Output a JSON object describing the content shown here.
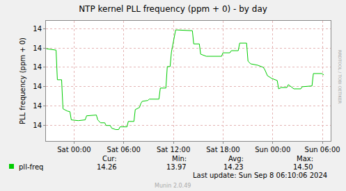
{
  "chart_data": {
    "type": "line",
    "title": "NTP kernel PLL frequency (ppm + 0) - by day",
    "y_label": "PLL frequency (ppm + 0)",
    "x": [
      -3.36,
      -2.86,
      -2.18,
      -2.02,
      -1.51,
      -1.34,
      -0.84,
      -0.5,
      -0.34,
      0.5,
      1.34,
      1.51,
      2.69,
      2.86,
      3.19,
      3.7,
      3.87,
      4.37,
      4.54,
      5.04,
      5.38,
      5.55,
      6.39,
      6.55,
      7.23,
      7.39,
      7.9,
      8.07,
      8.24,
      8.91,
      9.08,
      10.25,
      10.42,
      11.09,
      11.26,
      11.6,
      11.76,
      12.27,
      12.44,
      14.29,
      14.45,
      15.13,
      15.29,
      15.97,
      17.82,
      17.98,
      18.82,
      18.99,
      19.83,
      20.0,
      20.84,
      21.01,
      21.34,
      22.18,
      22.86,
      23.03,
      23.19,
      23.36,
      23.87,
      24.54,
      24.71,
      25.04,
      25.71,
      25.88,
      26.55,
      27.39,
      27.56,
      28.74,
      28.91,
      29.92,
      30.17
    ],
    "series": [
      {
        "name": "pll-freq",
        "color": "#00cc00",
        "values": [
          14.396,
          14.393,
          14.389,
          14.236,
          14.236,
          14.086,
          14.075,
          14.071,
          14.029,
          14.025,
          14.029,
          14.05,
          14.054,
          14.029,
          14.014,
          14.014,
          14.0,
          14.0,
          13.986,
          13.979,
          13.979,
          13.993,
          13.993,
          14.021,
          14.021,
          14.082,
          14.093,
          14.114,
          14.125,
          14.129,
          14.136,
          14.136,
          14.193,
          14.193,
          14.304,
          14.304,
          14.379,
          14.493,
          14.493,
          14.489,
          14.421,
          14.421,
          14.368,
          14.357,
          14.357,
          14.375,
          14.375,
          14.386,
          14.386,
          14.425,
          14.425,
          14.332,
          14.318,
          14.311,
          14.3,
          14.289,
          14.275,
          14.257,
          14.243,
          14.232,
          14.189,
          14.196,
          14.196,
          14.211,
          14.189,
          14.189,
          14.2,
          14.204,
          14.268,
          14.268,
          14.261
        ]
      }
    ],
    "xlim": [
      -3.4,
      31
    ],
    "xticks": [
      {
        "value": 0,
        "label": "Sat 00:00"
      },
      {
        "value": 6,
        "label": "Sat 06:00"
      },
      {
        "value": 12,
        "label": "Sat 12:00"
      },
      {
        "value": 18,
        "label": "Sat 18:00"
      },
      {
        "value": 24,
        "label": "Sun 00:00"
      },
      {
        "value": 30,
        "label": "Sun 06:00"
      }
    ],
    "ylim": [
      13.92,
      14.54
    ],
    "yticks": [
      14,
      {
        "value": 14.1,
        "label": "14"
      },
      {
        "value": 14.2,
        "label": "14"
      },
      {
        "value": 14.3,
        "label": "14"
      },
      {
        "value": 14.4,
        "label": "14"
      },
      {
        "value": 14.5,
        "label": "14"
      }
    ],
    "grid": true,
    "stats": [
      {
        "name": "Cur:",
        "value": 14.26
      },
      {
        "name": "Min:",
        "value": 13.97
      },
      {
        "name": "Avg:",
        "value": 14.23
      },
      {
        "name": "Max:",
        "value": 14.5,
        "label": "14.50"
      }
    ],
    "last_update": "Last update: Sun Sep 8 06:10:06 2024",
    "footer": "Munin 2.0.49",
    "watermark": "RRDTOOL / TOBI OETIKER"
  }
}
